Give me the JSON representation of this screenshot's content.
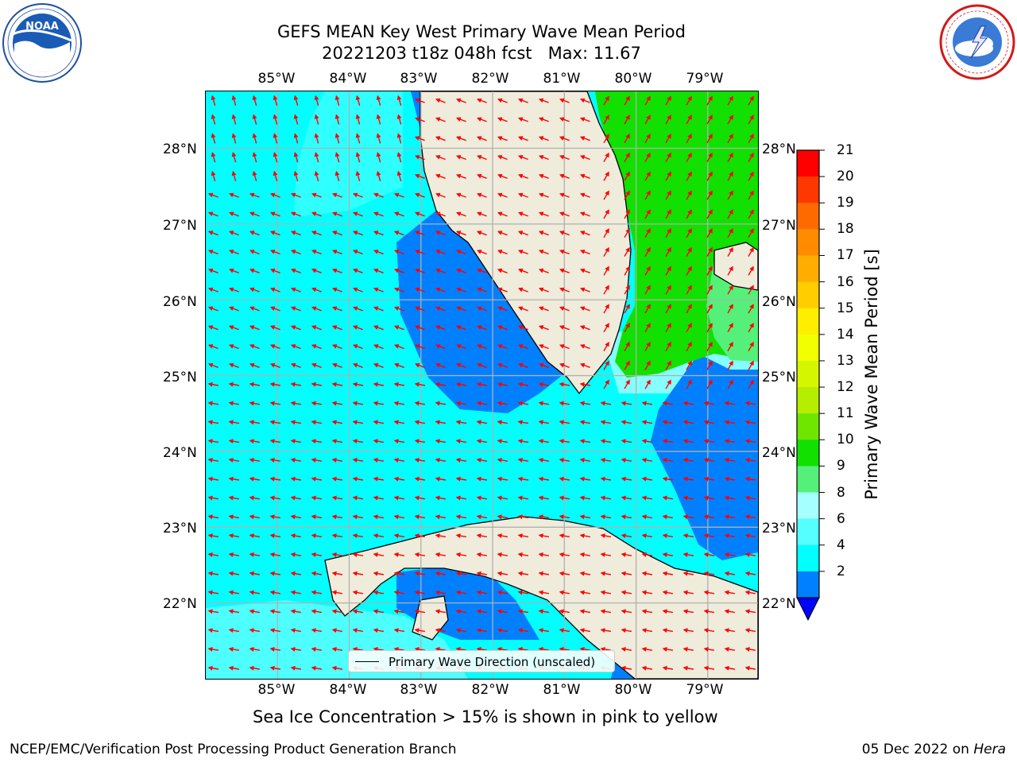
{
  "header": {
    "title_line1": "GEFS MEAN Key West Primary Wave Mean Period",
    "title_line2": "20221203 t18z 048h fcst   Max: 11.67"
  },
  "logos": {
    "noaa": {
      "name": "noaa-logo",
      "text": "NOAA",
      "ring_text": "NATIONAL OCEANIC AND ATMOSPHERIC ADMINISTRATION · U.S. DEPARTMENT OF COMMERCE"
    },
    "nws": {
      "name": "nws-logo",
      "ring_text": "NATIONAL WEATHER SERVICE"
    }
  },
  "map": {
    "lon_ticks": [
      "85°W",
      "84°W",
      "83°W",
      "82°W",
      "81°W",
      "80°W",
      "79°W"
    ],
    "lat_ticks": [
      "28°N",
      "27°N",
      "26°N",
      "25°N",
      "24°N",
      "23°N",
      "22°N"
    ],
    "lon_values": [
      -85,
      -84,
      -83,
      -82,
      -81,
      -80,
      -79
    ],
    "lat_values": [
      28,
      27,
      26,
      25,
      24,
      23,
      22
    ],
    "extent": {
      "lon_min": -86.0,
      "lon_max": -78.3,
      "lat_min": 21.0,
      "lat_max": 28.75
    },
    "legend_label": "Primary Wave Direction (unscaled)",
    "colors": {
      "land": "#efecdc",
      "coast": "#000000",
      "grid": "#b0b0b0",
      "arrow": "#ff0000"
    }
  },
  "colorbar": {
    "title": "Primary Wave Mean Period [s]",
    "labels": [
      "21",
      "20",
      "19",
      "18",
      "17",
      "16",
      "15",
      "14",
      "13",
      "12",
      "11",
      "10",
      "9",
      "8",
      "6",
      "4",
      "2"
    ],
    "colors_top_to_bottom": [
      "#ff0000",
      "#ff3700",
      "#ff6a00",
      "#ff8c00",
      "#ffad00",
      "#ffcd00",
      "#ffee00",
      "#f2ff00",
      "#d4f700",
      "#b5ee00",
      "#6ee600",
      "#11e000",
      "#55f07a",
      "#a6ffff",
      "#55ffff",
      "#00ffff",
      "#0080ff"
    ],
    "extend_color": "#0000ff"
  },
  "footer": {
    "sea_ice_note": "Sea Ice Concentration > 15% is shown in pink to yellow",
    "branch": "NCEP/EMC/Verification Post Processing Product Generation Branch",
    "date": "05 Dec 2022 on",
    "machine": "Hera"
  }
}
